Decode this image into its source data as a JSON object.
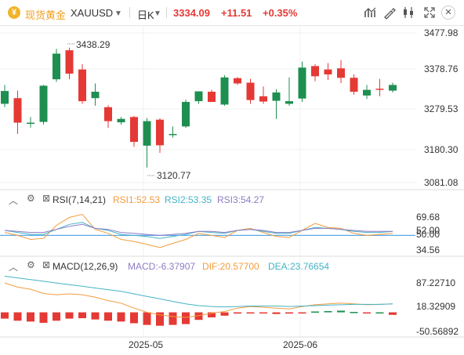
{
  "toolbar": {
    "symbol_name": "现货黄金",
    "symbol_code": "XAUUSD",
    "timeframe": "日K",
    "price": "3334.09",
    "change": "+11.51",
    "change_pct": "+0.35%",
    "buttons": [
      "indicators-icon",
      "settings-icon",
      "candles-icon",
      "fullscreen-icon",
      "close-icon"
    ],
    "colors": {
      "up": "#e53935",
      "down": "#1e8f50",
      "price": "#e53935"
    }
  },
  "chart_data": [
    {
      "type": "candlestick",
      "price_axis": [
        "3477.98",
        "3378.76",
        "3279.53",
        "3180.30",
        "3081.08"
      ],
      "annotations": {
        "high": "3438.29",
        "low": "3120.77",
        "last_price": "3334.09"
      },
      "x_labels": [
        "2025-05",
        "2025-06"
      ],
      "candles": [
        {
          "o": 3290,
          "h": 3340,
          "l": 3281,
          "c": 3324
        },
        {
          "o": 3305,
          "h": 3325,
          "l": 3210,
          "c": 3240
        },
        {
          "o": 3237,
          "h": 3255,
          "l": 3227,
          "c": 3240
        },
        {
          "o": 3242,
          "h": 3340,
          "l": 3235,
          "c": 3338
        },
        {
          "o": 3355,
          "h": 3436,
          "l": 3348,
          "c": 3423
        },
        {
          "o": 3432,
          "h": 3439,
          "l": 3355,
          "c": 3370
        },
        {
          "o": 3381,
          "h": 3395,
          "l": 3290,
          "c": 3297
        },
        {
          "o": 3305,
          "h": 3344,
          "l": 3285,
          "c": 3322
        },
        {
          "o": 3281,
          "h": 3286,
          "l": 3226,
          "c": 3244
        },
        {
          "o": 3241,
          "h": 3255,
          "l": 3235,
          "c": 3250
        },
        {
          "o": 3255,
          "h": 3258,
          "l": 3176,
          "c": 3189
        },
        {
          "o": 3179,
          "h": 3252,
          "l": 3121,
          "c": 3244
        },
        {
          "o": 3248,
          "h": 3252,
          "l": 3160,
          "c": 3180
        },
        {
          "o": 3210,
          "h": 3230,
          "l": 3200,
          "c": 3210
        },
        {
          "o": 3230,
          "h": 3301,
          "l": 3226,
          "c": 3295
        },
        {
          "o": 3297,
          "h": 3323,
          "l": 3290,
          "c": 3323
        },
        {
          "o": 3322,
          "h": 3327,
          "l": 3295,
          "c": 3295
        },
        {
          "o": 3288,
          "h": 3366,
          "l": 3285,
          "c": 3360
        },
        {
          "o": 3358,
          "h": 3361,
          "l": 3340,
          "c": 3344
        },
        {
          "o": 3346,
          "h": 3356,
          "l": 3290,
          "c": 3300
        },
        {
          "o": 3310,
          "h": 3336,
          "l": 3290,
          "c": 3296
        },
        {
          "o": 3298,
          "h": 3329,
          "l": 3250,
          "c": 3320
        },
        {
          "o": 3290,
          "h": 3360,
          "l": 3285,
          "c": 3297
        },
        {
          "o": 3304,
          "h": 3402,
          "l": 3295,
          "c": 3386
        },
        {
          "o": 3390,
          "h": 3395,
          "l": 3350,
          "c": 3363
        },
        {
          "o": 3381,
          "h": 3398,
          "l": 3353,
          "c": 3368
        },
        {
          "o": 3384,
          "h": 3406,
          "l": 3345,
          "c": 3359
        },
        {
          "o": 3359,
          "h": 3368,
          "l": 3314,
          "c": 3322
        },
        {
          "o": 3312,
          "h": 3340,
          "l": 3303,
          "c": 3327
        },
        {
          "o": 3330,
          "h": 3356,
          "l": 3310,
          "c": 3328
        },
        {
          "o": 3325,
          "h": 3346,
          "l": 3320,
          "c": 3340
        }
      ]
    },
    {
      "type": "line",
      "label": "RSI(7,14,21)",
      "legend": [
        {
          "name": "RSI1:52.53",
          "color": "#f39c3d"
        },
        {
          "name": "RSI2:53.35",
          "color": "#45b3c8"
        },
        {
          "name": "RSI3:54.27",
          "color": "#8e7cc3"
        }
      ],
      "axis": [
        "69.68",
        "52.00",
        "50.00",
        "34.56"
      ],
      "ylim": [
        30,
        80
      ],
      "reference": 50,
      "series": [
        {
          "name": "RSI1",
          "color": "#f39c3d",
          "values": [
            53,
            50,
            46,
            47,
            60,
            68,
            71,
            56,
            52,
            46,
            44,
            41,
            38,
            42,
            46,
            52,
            50,
            48,
            55,
            57,
            53,
            49,
            48,
            55,
            62,
            58,
            57,
            52,
            50,
            51,
            52
          ]
        },
        {
          "name": "RSI2",
          "color": "#45b3c8",
          "values": [
            55,
            53,
            51,
            51,
            56,
            61,
            63,
            57,
            55,
            51,
            50,
            49,
            47,
            49,
            51,
            54,
            53,
            52,
            55,
            56,
            54,
            52,
            52,
            55,
            58,
            57,
            56,
            54,
            53,
            53,
            54
          ]
        },
        {
          "name": "RSI3",
          "color": "#8e7cc3",
          "values": [
            55,
            54,
            53,
            53,
            56,
            59,
            61,
            57,
            56,
            53,
            52,
            51,
            50,
            51,
            52,
            54,
            54,
            53,
            55,
            56,
            55,
            53,
            53,
            55,
            57,
            57,
            56,
            55,
            54,
            54,
            54
          ]
        }
      ]
    },
    {
      "type": "bar+line",
      "label": "MACD(12,26,9)",
      "legend": [
        {
          "name": "MACD:-6.37907",
          "color": "#8e7cc3"
        },
        {
          "name": "DIF:20.57700",
          "color": "#f39c3d"
        },
        {
          "name": "DEA:23.76654",
          "color": "#45b3c8"
        }
      ],
      "axis": [
        "87.22710",
        "18.32909",
        "-50.56892"
      ],
      "ylim": [
        -55,
        100
      ],
      "series": [
        {
          "name": "DIF",
          "color": "#f39c3d",
          "values": [
            70,
            60,
            55,
            45,
            42,
            44,
            42,
            36,
            28,
            22,
            10,
            0,
            -6,
            -10,
            -12,
            -8,
            -2,
            2,
            10,
            14,
            12,
            10,
            8,
            14,
            18,
            20,
            22,
            20,
            18,
            19,
            20
          ]
        },
        {
          "name": "DEA",
          "color": "#45b3c8",
          "values": [
            86,
            82,
            78,
            74,
            70,
            66,
            62,
            58,
            54,
            50,
            44,
            38,
            32,
            26,
            20,
            16,
            14,
            13,
            14,
            15,
            15,
            15,
            14,
            15,
            16,
            17,
            18,
            19,
            19,
            19,
            20
          ]
        }
      ],
      "macd_bars": [
        -15,
        -20,
        -22,
        -25,
        -20,
        -15,
        -14,
        -17,
        -20,
        -22,
        -26,
        -30,
        -32,
        -30,
        -28,
        -18,
        -12,
        -8,
        -3,
        -1,
        -2,
        -4,
        -3,
        -1,
        2,
        3,
        4,
        1,
        -1,
        0,
        -6
      ]
    }
  ]
}
